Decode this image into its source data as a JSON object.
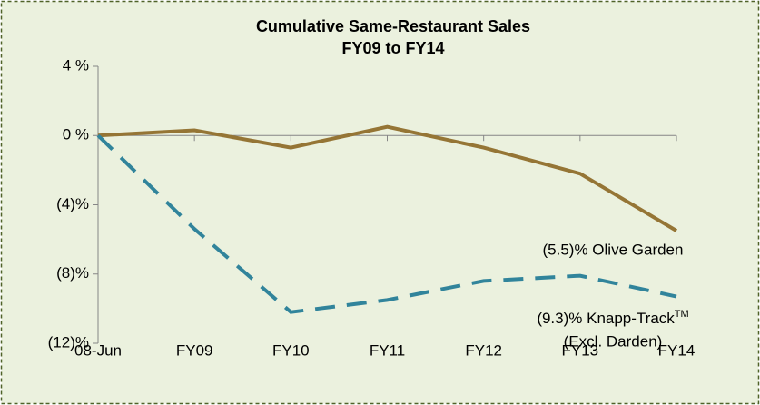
{
  "chart_data": {
    "type": "line",
    "title": "Cumulative Same-Restaurant Sales",
    "subtitle": "FY09 to FY14",
    "categories": [
      "08-Jun",
      "FY09",
      "FY10",
      "FY11",
      "FY12",
      "FY13",
      "FY14"
    ],
    "series": [
      {
        "color": "#957535",
        "dashed": false,
        "values": [
          0,
          0.3,
          -0.7,
          0.5,
          -0.7,
          -2.2,
          -5.5
        ]
      },
      {
        "color": "#31849b",
        "dashed": true,
        "values": [
          0,
          -5.4,
          -10.2,
          -9.5,
          -8.4,
          -8.1,
          -9.3
        ]
      }
    ],
    "ylim": [
      -12,
      4
    ],
    "yticks": [
      {
        "value": -12,
        "label": "(12)%"
      },
      {
        "value": -8,
        "label": "(8)%"
      },
      {
        "value": -4,
        "label": "(4)%"
      },
      {
        "value": 0,
        "label": "0 %"
      },
      {
        "value": 4,
        "label": "4 %"
      }
    ],
    "grid": false,
    "annotations": {
      "olive": "(5.5)% Olive Garden",
      "knapp": "(9.3)% Knapp-Track",
      "knapp_tm": "TM",
      "knapp_note": "(Excl. Darden)"
    }
  }
}
